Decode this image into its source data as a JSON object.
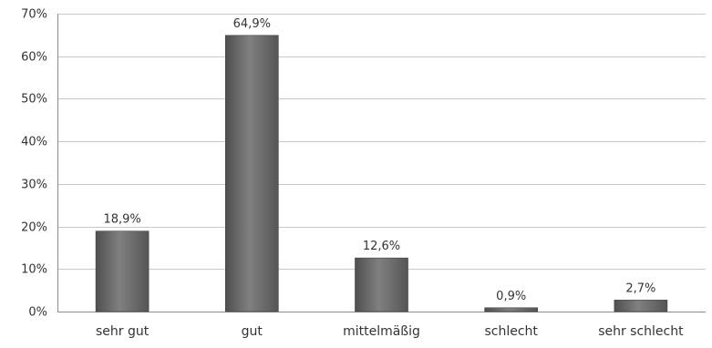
{
  "chart_data": {
    "type": "bar",
    "categories": [
      "sehr gut",
      "gut",
      "mittelmäßig",
      "schlecht",
      "sehr schlecht"
    ],
    "values": [
      18.9,
      64.9,
      12.6,
      0.9,
      2.7
    ],
    "data_labels": [
      "18,9%",
      "64,9%",
      "12,6%",
      "0,9%",
      "2,7%"
    ],
    "title": "",
    "xlabel": "",
    "ylabel": "",
    "ylim": [
      0,
      70
    ],
    "yticks": [
      0,
      10,
      20,
      30,
      40,
      50,
      60,
      70
    ],
    "ytick_labels": [
      "0%",
      "10%",
      "20%",
      "30%",
      "40%",
      "50%",
      "60%",
      "70%"
    ],
    "grid": true,
    "legend": "none",
    "bar_color": "#6b6b6b"
  }
}
